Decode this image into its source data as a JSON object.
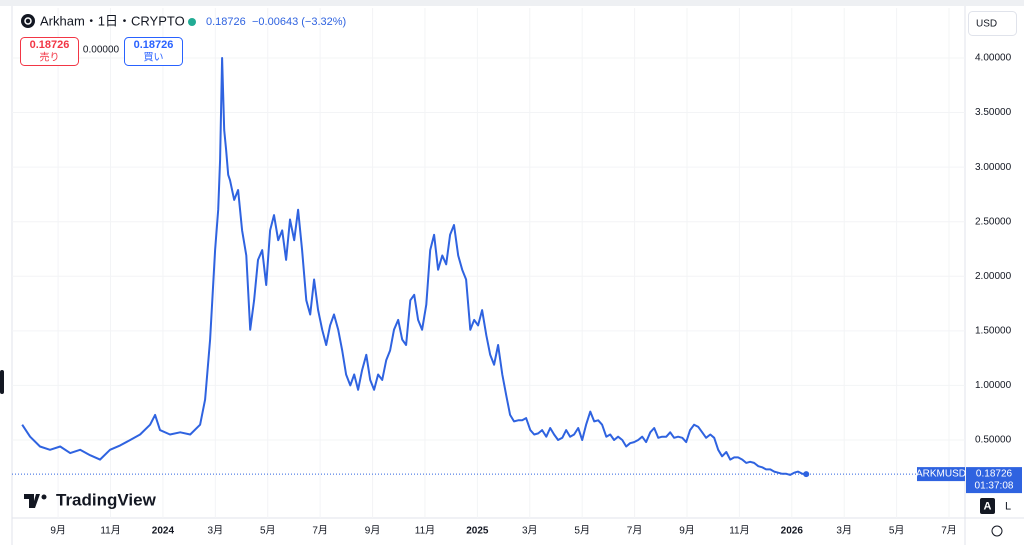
{
  "ui": {
    "symbol": "Arkham・1日・CRYPTO",
    "price": "0.18726",
    "change": "−0.00643 (−3.32%)",
    "sell": {
      "price": "0.18726",
      "label": "売り"
    },
    "spread": "0.00000",
    "buy": {
      "price": "0.18726",
      "label": "買い"
    },
    "currency": "USD",
    "tag": {
      "symbol": "ARKMUSD",
      "price": "0.18726",
      "countdown": "01:37:08"
    },
    "logo": "TradingView",
    "scale_buttons": [
      "A",
      "L"
    ]
  },
  "chart_data": {
    "type": "line",
    "grid": true,
    "xlim": [
      -1.76,
      34.61
    ],
    "xticks": [
      {
        "value": 0,
        "label": "9月"
      },
      {
        "value": 2,
        "label": "11月"
      },
      {
        "value": 4,
        "label": "2024"
      },
      {
        "value": 6,
        "label": "3月"
      },
      {
        "value": 8,
        "label": "5月"
      },
      {
        "value": 10,
        "label": "7月"
      },
      {
        "value": 12,
        "label": "9月"
      },
      {
        "value": 14,
        "label": "11月"
      },
      {
        "value": 16,
        "label": "2025"
      },
      {
        "value": 18,
        "label": "3月"
      },
      {
        "value": 20,
        "label": "5月"
      },
      {
        "value": 22,
        "label": "7月"
      },
      {
        "value": 24,
        "label": "9月"
      },
      {
        "value": 26,
        "label": "11月"
      },
      {
        "value": 28,
        "label": "2026"
      },
      {
        "value": 30,
        "label": "3月"
      },
      {
        "value": 32,
        "label": "5月"
      },
      {
        "value": 34,
        "label": "7月"
      }
    ],
    "ylim": [
      -0.215,
      4.458
    ],
    "yticks": [
      {
        "value": 0.5,
        "label": "0.50000"
      },
      {
        "value": 1,
        "label": "1.00000"
      },
      {
        "value": 1.5,
        "label": "1.50000"
      },
      {
        "value": 2,
        "label": "2.00000"
      },
      {
        "value": 2.5,
        "label": "2.50000"
      },
      {
        "value": 3,
        "label": "3.00000"
      },
      {
        "value": 3.5,
        "label": "3.50000"
      },
      {
        "value": 4,
        "label": "4.00000"
      }
    ],
    "x": [
      -1.37,
      -1.07,
      -0.69,
      -0.31,
      0.08,
      0.46,
      0.84,
      1.22,
      1.6,
      1.98,
      2.37,
      2.75,
      3.13,
      3.51,
      3.7,
      3.89,
      4.27,
      4.66,
      5.04,
      5.42,
      5.61,
      5.8,
      5.99,
      6.11,
      6.18,
      6.26,
      6.34,
      6.41,
      6.49,
      6.56,
      6.72,
      6.87,
      7.02,
      7.18,
      7.33,
      7.48,
      7.63,
      7.79,
      7.94,
      8.09,
      8.24,
      8.4,
      8.55,
      8.7,
      8.85,
      9.01,
      9.16,
      9.31,
      9.47,
      9.62,
      9.77,
      9.92,
      10.08,
      10.23,
      10.38,
      10.53,
      10.69,
      10.84,
      10.99,
      11.15,
      11.3,
      11.45,
      11.6,
      11.76,
      11.91,
      12.06,
      12.21,
      12.37,
      12.52,
      12.67,
      12.82,
      12.98,
      13.13,
      13.28,
      13.44,
      13.59,
      13.74,
      13.89,
      14.05,
      14.2,
      14.35,
      14.5,
      14.66,
      14.81,
      14.96,
      15.11,
      15.27,
      15.42,
      15.57,
      15.73,
      15.88,
      16.03,
      16.18,
      16.34,
      16.49,
      16.64,
      16.79,
      16.95,
      17.1,
      17.25,
      17.4,
      17.56,
      17.71,
      17.86,
      18.02,
      18.17,
      18.32,
      18.47,
      18.63,
      18.78,
      18.93,
      19.08,
      19.24,
      19.39,
      19.54,
      19.69,
      19.85,
      20.0,
      20.15,
      20.31,
      20.46,
      20.61,
      20.76,
      20.92,
      21.07,
      21.22,
      21.37,
      21.53,
      21.68,
      21.83,
      21.98,
      22.14,
      22.29,
      22.44,
      22.6,
      22.75,
      22.9,
      23.05,
      23.21,
      23.36,
      23.51,
      23.66,
      23.82,
      23.97,
      24.12,
      24.27,
      24.43,
      24.58,
      24.73,
      24.89,
      25.04,
      25.19,
      25.34,
      25.5,
      25.65,
      25.8,
      25.95,
      26.11,
      26.26,
      26.41,
      26.56,
      26.72,
      26.87,
      27.02,
      27.18,
      27.33,
      27.48,
      27.63,
      27.79,
      27.94,
      28.09,
      28.24,
      28.4,
      28.55
    ],
    "series": [
      {
        "name": "ARKMUSD",
        "color": "#2f63e0",
        "values": [
          0.64,
          0.53,
          0.44,
          0.41,
          0.44,
          0.38,
          0.41,
          0.36,
          0.32,
          0.41,
          0.45,
          0.5,
          0.55,
          0.64,
          0.73,
          0.59,
          0.55,
          0.57,
          0.55,
          0.64,
          0.87,
          1.42,
          2.24,
          2.61,
          3.07,
          4.0,
          3.34,
          3.16,
          2.93,
          2.88,
          2.7,
          2.79,
          2.42,
          2.19,
          1.51,
          1.78,
          2.15,
          2.24,
          1.92,
          2.42,
          2.56,
          2.33,
          2.42,
          2.15,
          2.52,
          2.33,
          2.61,
          2.24,
          1.78,
          1.65,
          1.97,
          1.69,
          1.51,
          1.37,
          1.55,
          1.65,
          1.51,
          1.32,
          1.1,
          1.0,
          1.1,
          0.96,
          1.14,
          1.28,
          1.05,
          0.96,
          1.1,
          1.05,
          1.23,
          1.32,
          1.51,
          1.6,
          1.42,
          1.37,
          1.78,
          1.83,
          1.6,
          1.51,
          1.74,
          2.24,
          2.38,
          2.06,
          2.19,
          2.11,
          2.38,
          2.47,
          2.19,
          2.06,
          1.97,
          1.51,
          1.6,
          1.55,
          1.69,
          1.46,
          1.28,
          1.19,
          1.37,
          1.1,
          0.91,
          0.73,
          0.67,
          0.68,
          0.68,
          0.7,
          0.59,
          0.55,
          0.56,
          0.59,
          0.53,
          0.61,
          0.55,
          0.5,
          0.52,
          0.59,
          0.53,
          0.55,
          0.61,
          0.5,
          0.64,
          0.76,
          0.67,
          0.68,
          0.64,
          0.53,
          0.55,
          0.5,
          0.53,
          0.5,
          0.44,
          0.47,
          0.48,
          0.5,
          0.53,
          0.48,
          0.57,
          0.61,
          0.52,
          0.53,
          0.53,
          0.57,
          0.52,
          0.53,
          0.52,
          0.48,
          0.59,
          0.64,
          0.62,
          0.57,
          0.52,
          0.55,
          0.52,
          0.41,
          0.35,
          0.39,
          0.32,
          0.34,
          0.34,
          0.32,
          0.29,
          0.3,
          0.29,
          0.26,
          0.25,
          0.23,
          0.23,
          0.21,
          0.2,
          0.19,
          0.19,
          0.18,
          0.2,
          0.21,
          0.19,
          0.18726
        ]
      }
    ]
  }
}
